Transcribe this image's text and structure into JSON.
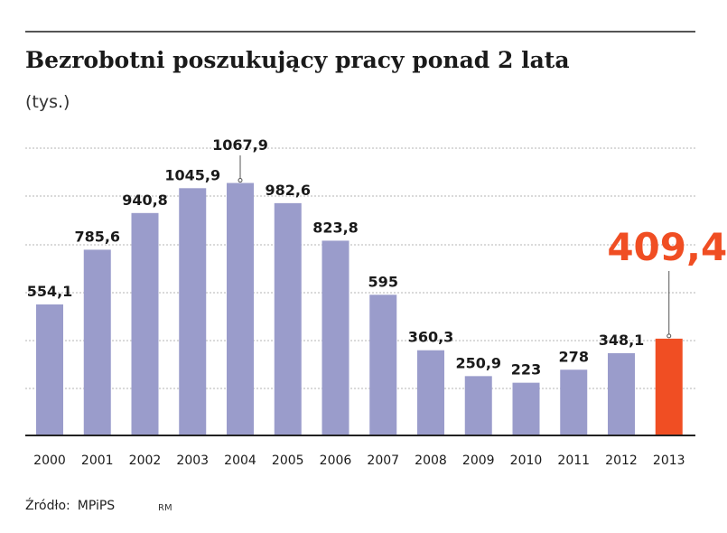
{
  "title": "Bezrobotni poszukujący pracy ponad 2 lata",
  "unit_label": "(tys.)",
  "source_label": "Źródło:",
  "source_value": "MPiPS",
  "credit": "RM",
  "colors": {
    "bar": "#9a9ccb",
    "highlight": "#f04e23",
    "text": "#1a1a1a",
    "grid": "#b5b5b5",
    "axis": "#222222"
  },
  "chart_data": {
    "type": "bar",
    "title": "Bezrobotni poszukujący pracy ponad 2 lata",
    "ylabel": "(tys.)",
    "xlabel": "",
    "categories": [
      "2000",
      "2001",
      "2002",
      "2003",
      "2004",
      "2005",
      "2006",
      "2007",
      "2008",
      "2009",
      "2010",
      "2011",
      "2012",
      "2013"
    ],
    "values": [
      554.1,
      785.6,
      940.8,
      1045.9,
      1067.9,
      982.6,
      823.8,
      595,
      360.3,
      250.9,
      223,
      278,
      348.1,
      409.4
    ],
    "value_labels": [
      "554,1",
      "785,6",
      "940,8",
      "1045,9",
      "1067,9",
      "982,6",
      "823,8",
      "595",
      "360,3",
      "250,9",
      "223",
      "278",
      "348,1",
      "409,4"
    ],
    "highlight_index": 13,
    "ylim": [
      0,
      1070
    ],
    "grid": true
  }
}
